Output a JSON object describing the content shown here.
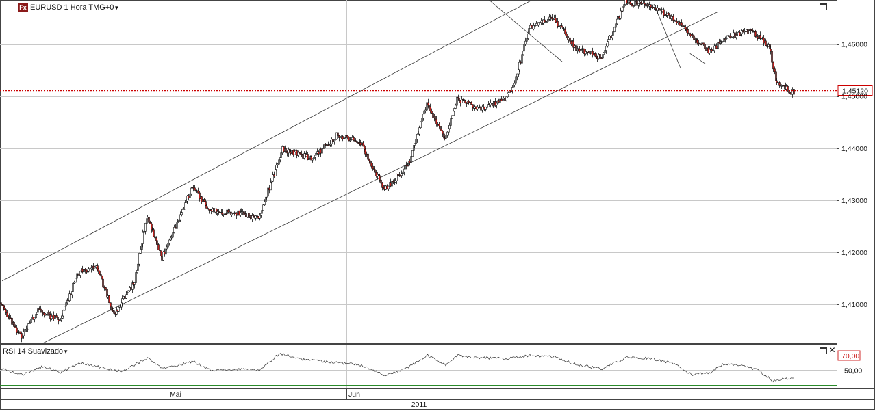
{
  "main_panel": {
    "symbol": "EURUSD",
    "timeframe": "1 Hora",
    "timezone": "TMG+0",
    "logo_text": "Fx"
  },
  "rsi_panel": {
    "title": "RSI 14 Suavizado",
    "upper_level_label": "70,00",
    "mid_level_label": "50,00"
  },
  "chart_data": [
    {
      "type": "candlestick",
      "instrument": "EURUSD",
      "interval": "1 Hora",
      "ylim": [
        1.4025,
        1.4685
      ],
      "y_ticks": [
        "1,41000",
        "1,42000",
        "1,43000",
        "1,44000",
        "1,45000",
        "1,46000"
      ],
      "y_tick_values": [
        1.41,
        1.42,
        1.43,
        1.44,
        1.45,
        1.46
      ],
      "x_ticks": [
        "Mai",
        "Jun"
      ],
      "x_year": "2011",
      "current_price_label": "1,45120",
      "current_price": 1.4512,
      "colors": {
        "up": "#ffffff",
        "down": "#c0201c",
        "outline": "#111111",
        "price_line": "#cc0000",
        "trendline": "#333333",
        "grid": "#c8c8c8"
      },
      "grid": true,
      "price_anchors": [
        [
          0,
          1.4103
        ],
        [
          18,
          1.4035
        ],
        [
          32,
          1.409
        ],
        [
          50,
          1.4068
        ],
        [
          65,
          1.416
        ],
        [
          80,
          1.4175
        ],
        [
          95,
          1.408
        ],
        [
          112,
          1.4145
        ],
        [
          122,
          1.427
        ],
        [
          135,
          1.419
        ],
        [
          160,
          1.4325
        ],
        [
          175,
          1.428
        ],
        [
          200,
          1.4275
        ],
        [
          215,
          1.4265
        ],
        [
          235,
          1.4398
        ],
        [
          260,
          1.438
        ],
        [
          280,
          1.4425
        ],
        [
          300,
          1.441
        ],
        [
          320,
          1.432
        ],
        [
          340,
          1.437
        ],
        [
          355,
          1.4485
        ],
        [
          370,
          1.4415
        ],
        [
          380,
          1.4495
        ],
        [
          400,
          1.4475
        ],
        [
          420,
          1.4495
        ],
        [
          428,
          1.4525
        ],
        [
          440,
          1.463
        ],
        [
          460,
          1.465
        ],
        [
          480,
          1.459
        ],
        [
          500,
          1.4575
        ],
        [
          520,
          1.468
        ],
        [
          540,
          1.4675
        ],
        [
          560,
          1.465
        ],
        [
          590,
          1.4585
        ],
        [
          605,
          1.4615
        ],
        [
          625,
          1.4625
        ],
        [
          640,
          1.4595
        ],
        [
          645,
          1.453
        ],
        [
          658,
          1.4508
        ]
      ],
      "trendlines": [
        {
          "name": "upper-channel",
          "points": [
            [
              1.2,
              1.4145
            ],
            [
              441,
              1.4684
            ]
          ]
        },
        {
          "name": "lower-channel",
          "points": [
            [
              35,
              1.4025
            ],
            [
              596,
              1.4662
            ]
          ]
        },
        {
          "name": "resistance-line",
          "points": [
            [
              406,
              1.4685
            ],
            [
              467,
              1.4566
            ]
          ]
        },
        {
          "name": "support-line",
          "points": [
            [
              543,
              1.4677
            ],
            [
              565,
              1.4555
            ]
          ]
        },
        {
          "name": "wedge-line",
          "points": [
            [
              573,
              1.4582
            ],
            [
              586,
              1.4562
            ]
          ]
        },
        {
          "name": "neckline",
          "points": [
            [
              484,
              1.4566
            ],
            [
              650,
              1.4566
            ]
          ]
        }
      ]
    },
    {
      "type": "line",
      "name": "RSI 14 Suavizado",
      "ylim": [
        25,
        85
      ],
      "levels": [
        70,
        30
      ],
      "y_ticks": [
        "70,00",
        "50,00"
      ],
      "rsi_anchors": [
        [
          0,
          52
        ],
        [
          18,
          44
        ],
        [
          35,
          55
        ],
        [
          50,
          47
        ],
        [
          65,
          60
        ],
        [
          80,
          55
        ],
        [
          100,
          48
        ],
        [
          112,
          58
        ],
        [
          122,
          66
        ],
        [
          135,
          52
        ],
        [
          160,
          62
        ],
        [
          175,
          50
        ],
        [
          200,
          51
        ],
        [
          215,
          50
        ],
        [
          232,
          73
        ],
        [
          250,
          65
        ],
        [
          270,
          62
        ],
        [
          300,
          57
        ],
        [
          320,
          42
        ],
        [
          340,
          55
        ],
        [
          355,
          70
        ],
        [
          370,
          57
        ],
        [
          380,
          70
        ],
        [
          400,
          67
        ],
        [
          420,
          66
        ],
        [
          440,
          70
        ],
        [
          460,
          68
        ],
        [
          480,
          57
        ],
        [
          500,
          52
        ],
        [
          520,
          67
        ],
        [
          540,
          66
        ],
        [
          560,
          59
        ],
        [
          575,
          43
        ],
        [
          590,
          47
        ],
        [
          600,
          58
        ],
        [
          615,
          57
        ],
        [
          630,
          50
        ],
        [
          642,
          35
        ],
        [
          655,
          39
        ]
      ]
    }
  ]
}
